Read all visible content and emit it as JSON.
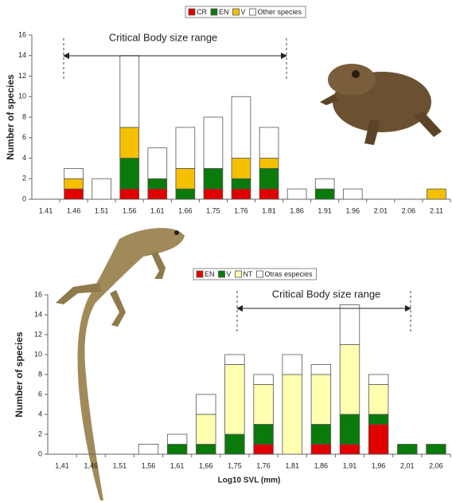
{
  "chart_data": [
    {
      "type": "bar",
      "stacked": true,
      "y_label": "Number of species",
      "annotation": "Critical  Body size range",
      "categories": [
        "1.41",
        "1.46",
        "1.51",
        "1.56",
        "1.61",
        "1.66",
        "1.75",
        "1.76",
        "1.81",
        "1.86",
        "1.91",
        "1.96",
        "2.01",
        "2.06",
        "2.11"
      ],
      "series": [
        {
          "name": "CR",
          "color": "#e00000",
          "values": [
            0,
            1,
            0,
            1,
            1,
            0,
            1,
            1,
            1,
            0,
            0,
            0,
            0,
            0,
            0
          ]
        },
        {
          "name": "EN",
          "color": "#0a7a0a",
          "values": [
            0,
            0,
            0,
            3,
            1,
            1,
            2,
            1,
            2,
            0,
            1,
            0,
            0,
            0,
            0
          ]
        },
        {
          "name": "V",
          "color": "#f5c000",
          "values": [
            0,
            1,
            0,
            3,
            0,
            2,
            0,
            2,
            1,
            0,
            0,
            0,
            0,
            0,
            1
          ]
        },
        {
          "name": "Other species",
          "color": "#ffffff",
          "values": [
            0,
            1,
            2,
            7,
            3,
            4,
            5,
            6,
            3,
            1,
            1,
            1,
            0,
            0,
            0
          ]
        }
      ],
      "ylim": [
        0,
        16
      ],
      "yticks": [
        0,
        2,
        4,
        6,
        8,
        10,
        12,
        14,
        16
      ]
    },
    {
      "type": "bar",
      "stacked": true,
      "y_label": "Number of species",
      "x_label": "Log10 SVL (mm)",
      "annotation": "Critical Body size range",
      "categories": [
        "1,41",
        "1,46",
        "1,51",
        "1,56",
        "1,61",
        "1,66",
        "1,75",
        "1,76",
        "1,81",
        "1,86",
        "1,91",
        "1,96",
        "2,01",
        "2,06"
      ],
      "series": [
        {
          "name": "EN",
          "color": "#e00000",
          "values": [
            0,
            0,
            0,
            0,
            0,
            0,
            0,
            1,
            0,
            1,
            1,
            3,
            0,
            0
          ]
        },
        {
          "name": "V",
          "color": "#0a7a0a",
          "values": [
            0,
            0,
            0,
            0,
            1,
            1,
            2,
            2,
            0,
            2,
            3,
            1,
            1,
            1
          ]
        },
        {
          "name": "NT",
          "color": "#ffffb0",
          "values": [
            0,
            0,
            0,
            0,
            0,
            3,
            7,
            4,
            8,
            5,
            7,
            3,
            0,
            0
          ]
        },
        {
          "name": "Otras especies",
          "color": "#ffffff",
          "values": [
            0,
            0,
            0,
            1,
            1,
            2,
            1,
            1,
            2,
            1,
            4,
            1,
            0,
            0
          ]
        }
      ],
      "ylim": [
        0,
        16
      ],
      "yticks": [
        0,
        2,
        4,
        6,
        8,
        10,
        12,
        14,
        16
      ]
    }
  ]
}
